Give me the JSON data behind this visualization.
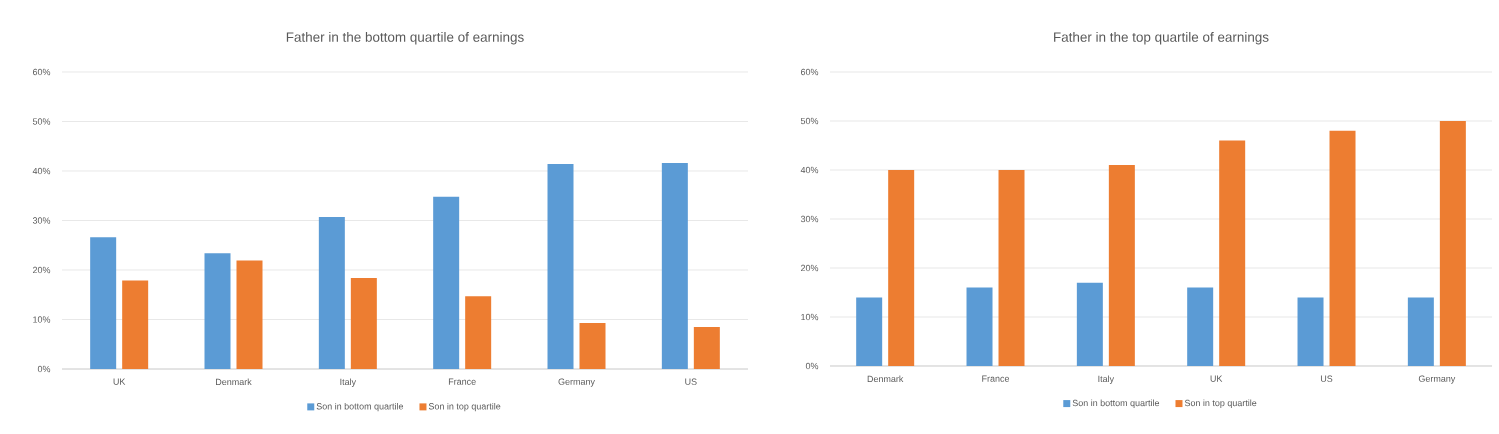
{
  "chart_data": [
    {
      "type": "bar",
      "title": "Father in the bottom quartile of earnings",
      "categories": [
        "UK",
        "Denmark",
        "Italy",
        "France",
        "Germany",
        "US"
      ],
      "series": [
        {
          "name": "Son in bottom quartile",
          "color": "#5b9bd5",
          "values": [
            26.6,
            23.4,
            30.7,
            34.8,
            41.4,
            41.6
          ]
        },
        {
          "name": "Son in top quartile",
          "color": "#ed7d31",
          "values": [
            17.9,
            21.9,
            18.4,
            14.7,
            9.3,
            8.5
          ]
        }
      ],
      "ylim": [
        0,
        60
      ],
      "yticks": [
        {
          "value": 0,
          "label": "0%"
        },
        {
          "value": 10,
          "label": "10%"
        },
        {
          "value": 20,
          "label": "20%"
        },
        {
          "value": 30,
          "label": "30%"
        },
        {
          "value": 40,
          "label": "40%"
        },
        {
          "value": 50,
          "label": "50%"
        },
        {
          "value": 60,
          "label": "60%"
        }
      ],
      "grid": "y",
      "legend": "bottom"
    },
    {
      "type": "bar",
      "title": "Father in the top quartile of earnings",
      "categories": [
        "Denmark",
        "France",
        "Italy",
        "UK",
        "US",
        "Germany"
      ],
      "series": [
        {
          "name": "Son in bottom quartile",
          "color": "#5b9bd5",
          "values": [
            14,
            16,
            17,
            16,
            14,
            14
          ]
        },
        {
          "name": "Son in top quartile",
          "color": "#ed7d31",
          "values": [
            40,
            40,
            41,
            46,
            48,
            50
          ]
        }
      ],
      "ylim": [
        0,
        60
      ],
      "yticks": [
        {
          "value": 0,
          "label": "0%"
        },
        {
          "value": 10,
          "label": "10%"
        },
        {
          "value": 20,
          "label": "20%"
        },
        {
          "value": 30,
          "label": "30%"
        },
        {
          "value": 40,
          "label": "40%"
        },
        {
          "value": 50,
          "label": "50%"
        },
        {
          "value": 60,
          "label": "60%"
        }
      ],
      "grid": "y",
      "legend": "bottom"
    }
  ]
}
